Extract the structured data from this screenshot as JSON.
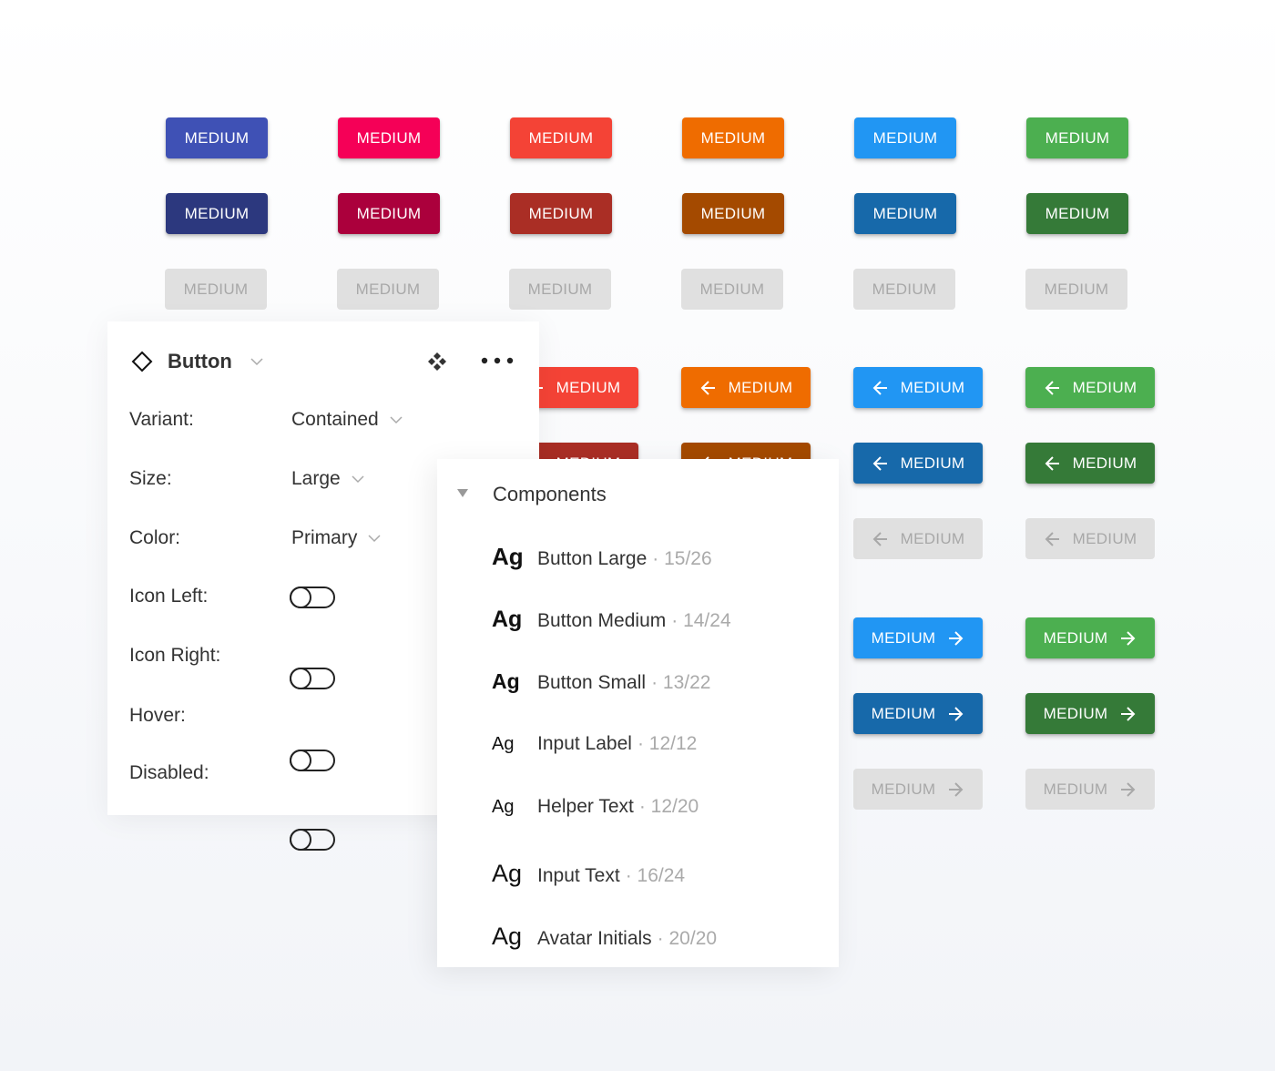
{
  "button_label": "MEDIUM",
  "colors": {
    "main": [
      "#3f51b5",
      "#f50057",
      "#f44336",
      "#ef6c00",
      "#2196f3",
      "#4caf50"
    ],
    "dark": [
      "#2c387e",
      "#ab003c",
      "#aa2e25",
      "#a44a00",
      "#1769aa",
      "#357a38"
    ]
  },
  "props": {
    "title": "Button",
    "rows": [
      {
        "label": "Variant:",
        "value": "Contained"
      },
      {
        "label": "Size:",
        "value": "Large"
      },
      {
        "label": "Color:",
        "value": "Primary"
      }
    ],
    "toggles": [
      {
        "label": "Icon Left:",
        "on": false
      },
      {
        "label": "Icon Right:",
        "on": false
      },
      {
        "label": "Hover:",
        "on": false
      },
      {
        "label": "Disabled:",
        "on": false
      }
    ]
  },
  "components": {
    "title": "Components",
    "items": [
      {
        "sample": "Ag",
        "name": "Button Large",
        "meta": "· 15/26"
      },
      {
        "sample": "Ag",
        "name": "Button Medium",
        "meta": "· 14/24"
      },
      {
        "sample": "Ag",
        "name": "Button Small",
        "meta": "· 13/22"
      },
      {
        "sample": "Ag",
        "name": "Input Label",
        "meta": "· 12/12"
      },
      {
        "sample": "Ag",
        "name": "Helper Text",
        "meta": "· 12/20"
      },
      {
        "sample": "Ag",
        "name": "Input Text",
        "meta": "· 16/24"
      },
      {
        "sample": "Ag",
        "name": "Avatar Initials",
        "meta": "· 20/20"
      }
    ]
  }
}
